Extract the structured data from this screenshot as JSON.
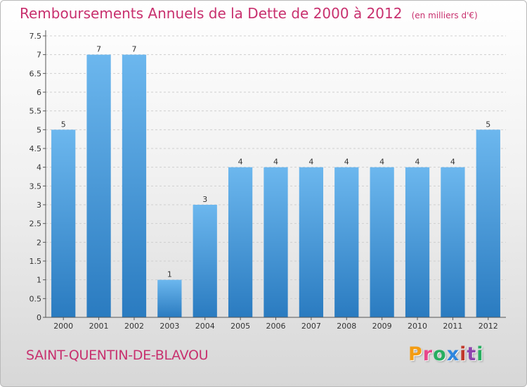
{
  "title": "Remboursements Annuels de la Dette de 2000 à 2012",
  "unit_note": "(en milliers d'€)",
  "city": "SAINT-QUENTIN-DE-BLAVOU",
  "brand": {
    "letters": [
      "P",
      "r",
      "o",
      "x",
      "i",
      "t",
      "i"
    ],
    "colors": [
      "#f39c12",
      "#e8478b",
      "#27ae60",
      "#2e86de",
      "#c0392b",
      "#8e44ad",
      "#27ae60"
    ]
  },
  "colors": {
    "bar_light": "#6cb7ee",
    "bar_dark": "#2a7bc0",
    "title": "#c8306e",
    "axis": "#555555",
    "grid": "#cfcfcf"
  },
  "chart_data": {
    "type": "bar",
    "categories": [
      "2000",
      "2001",
      "2002",
      "2003",
      "2004",
      "2005",
      "2006",
      "2007",
      "2008",
      "2009",
      "2010",
      "2011",
      "2012"
    ],
    "values": [
      5,
      7,
      7,
      1,
      3,
      4,
      4,
      4,
      4,
      4,
      4,
      4,
      5
    ],
    "value_labels": [
      "5",
      "7",
      "7",
      "1",
      "3",
      "4",
      "4",
      "4",
      "4",
      "4",
      "4",
      "4",
      "5"
    ],
    "ylim": [
      0,
      7.5
    ],
    "yticks": [
      "0",
      "0.5",
      "1",
      "1.5",
      "2",
      "2.5",
      "3",
      "3.5",
      "4",
      "4.5",
      "5",
      "5.5",
      "6",
      "6.5",
      "7",
      "7.5"
    ],
    "grid": true,
    "xlabel": "",
    "ylabel": ""
  }
}
